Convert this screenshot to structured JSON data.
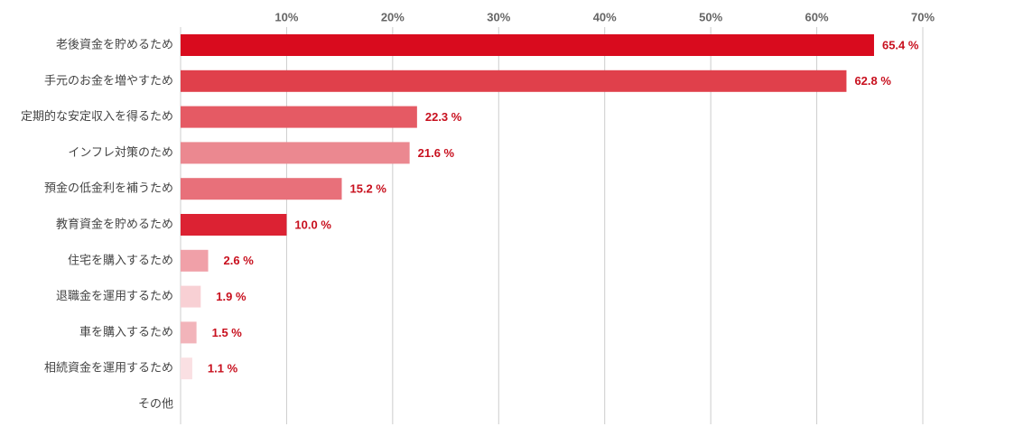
{
  "chart_data": {
    "type": "bar",
    "orientation": "horizontal",
    "categories": [
      "老後資金を貯めるため",
      "手元のお金を増やすため",
      "定期的な安定収入を得るため",
      "インフレ対策のため",
      "預金の低金利を補うため",
      "教育資金を貯めるため",
      "住宅を購入するため",
      "退職金を運用するため",
      "車を購入するため",
      "相続資金を運用するため",
      "その他"
    ],
    "values": [
      65.4,
      62.8,
      22.3,
      21.6,
      15.2,
      10.0,
      2.6,
      1.9,
      1.5,
      1.1,
      null
    ],
    "value_labels": [
      "65.4 %",
      "62.8 %",
      "22.3 %",
      "21.6 %",
      "15.2 %",
      "10.0 %",
      "2.6 %",
      "1.9 %",
      "1.5 %",
      "1.1 %",
      null
    ],
    "colors": [
      "#d90b1e",
      "#e0404b",
      "#e55a64",
      "#eb8890",
      "#e8707a",
      "#dc2233",
      "#f0a0a8",
      "#f8d0d4",
      "#f2b4ba",
      "#fae0e3",
      null
    ],
    "xlim": [
      0,
      70
    ],
    "xticks": [
      {
        "value": 10,
        "label": "10%"
      },
      {
        "value": 20,
        "label": "20%"
      },
      {
        "value": 30,
        "label": "30%"
      },
      {
        "value": 40,
        "label": "40%"
      },
      {
        "value": 50,
        "label": "50%"
      },
      {
        "value": 60,
        "label": "60%"
      },
      {
        "value": 70,
        "label": "70%"
      }
    ],
    "grid": true
  }
}
